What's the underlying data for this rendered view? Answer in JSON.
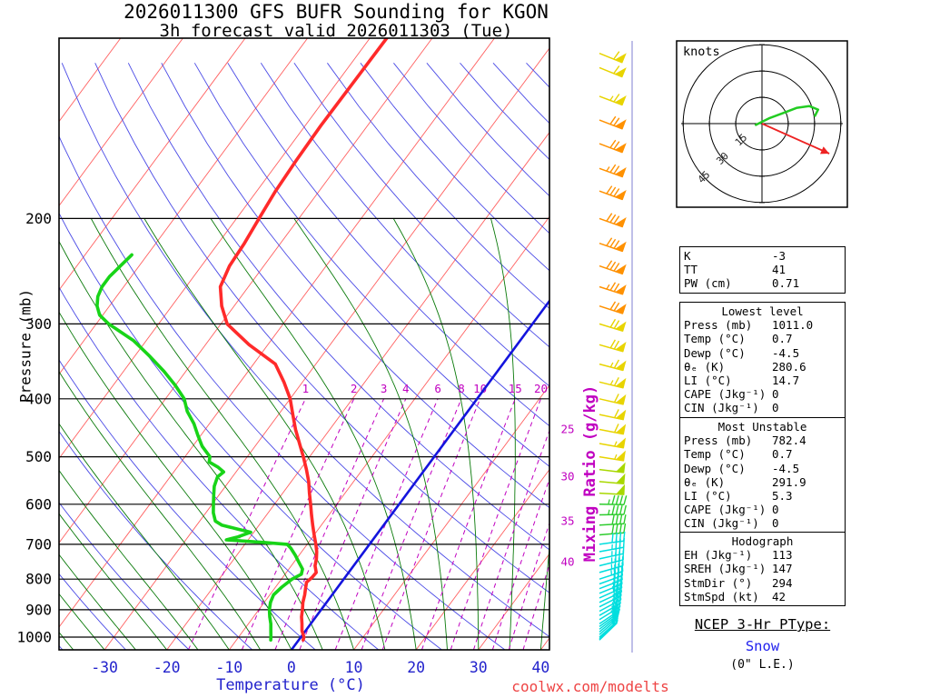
{
  "title": {
    "line1": "2026011300 GFS BUFR Sounding for KGON",
    "line2": "3h forecast valid 2026011303 (Tue)"
  },
  "axes": {
    "pressure_label": "Pressure (mb)",
    "temperature_label": "Temperature (°C)",
    "mixing_ratio_label": "Mixing Ratio (g/kg)",
    "pressure_ticks": [
      200,
      300,
      400,
      500,
      600,
      700,
      800,
      900,
      1000
    ],
    "temperature_ticks": [
      -30,
      -20,
      -10,
      0,
      10,
      20,
      30,
      40
    ]
  },
  "chart_data": {
    "type": "line",
    "subtype": "skew-t-log-p-sounding",
    "pressure_range_mb": [
      100,
      1050
    ],
    "temperature_range_c": [
      -37.3,
      41.4
    ],
    "series": [
      {
        "name": "temperature",
        "units": "°C vs mb",
        "color": "#ff2a2a",
        "points": [
          [
            1011,
            0.7
          ],
          [
            1000,
            0.5
          ],
          [
            975,
            -0.6
          ],
          [
            950,
            -1.4
          ],
          [
            925,
            -2.3
          ],
          [
            900,
            -3.0
          ],
          [
            875,
            -3.8
          ],
          [
            850,
            -4.4
          ],
          [
            830,
            -5.0
          ],
          [
            810,
            -5.6
          ],
          [
            795,
            -5.3
          ],
          [
            780,
            -5.2
          ],
          [
            760,
            -6.2
          ],
          [
            740,
            -6.8
          ],
          [
            720,
            -7.6
          ],
          [
            700,
            -8.6
          ],
          [
            675,
            -10.0
          ],
          [
            650,
            -11.4
          ],
          [
            625,
            -12.8
          ],
          [
            600,
            -14.2
          ],
          [
            575,
            -15.7
          ],
          [
            550,
            -17.2
          ],
          [
            525,
            -19.0
          ],
          [
            500,
            -21.0
          ],
          [
            475,
            -23.2
          ],
          [
            450,
            -25.5
          ],
          [
            425,
            -27.7
          ],
          [
            400,
            -30.0
          ],
          [
            375,
            -33.0
          ],
          [
            350,
            -36.5
          ],
          [
            325,
            -43.0
          ],
          [
            300,
            -49.0
          ],
          [
            280,
            -52.0
          ],
          [
            260,
            -54.5
          ],
          [
            240,
            -55.5
          ],
          [
            220,
            -55.8
          ],
          [
            200,
            -56.4
          ],
          [
            180,
            -57.0
          ],
          [
            160,
            -57.3
          ],
          [
            140,
            -57.5
          ],
          [
            120,
            -57.4
          ],
          [
            100,
            -57.3
          ]
        ]
      },
      {
        "name": "dewpoint",
        "units": "°C vs mb",
        "color": "#18d418",
        "points": [
          [
            1011,
            -4.5
          ],
          [
            1000,
            -4.8
          ],
          [
            975,
            -5.6
          ],
          [
            950,
            -6.4
          ],
          [
            925,
            -7.4
          ],
          [
            900,
            -8.3
          ],
          [
            875,
            -9.0
          ],
          [
            850,
            -9.4
          ],
          [
            825,
            -9.0
          ],
          [
            800,
            -8.3
          ],
          [
            785,
            -7.4
          ],
          [
            770,
            -7.8
          ],
          [
            750,
            -9.2
          ],
          [
            730,
            -10.6
          ],
          [
            710,
            -12.2
          ],
          [
            700,
            -13.2
          ],
          [
            695,
            -17.0
          ],
          [
            688,
            -23.5
          ],
          [
            680,
            -22.0
          ],
          [
            668,
            -20.5
          ],
          [
            660,
            -23.0
          ],
          [
            650,
            -26.0
          ],
          [
            640,
            -27.5
          ],
          [
            620,
            -28.8
          ],
          [
            600,
            -29.8
          ],
          [
            580,
            -30.8
          ],
          [
            560,
            -31.8
          ],
          [
            540,
            -32.4
          ],
          [
            530,
            -32.0
          ],
          [
            520,
            -33.5
          ],
          [
            510,
            -35.5
          ],
          [
            500,
            -36.0
          ],
          [
            480,
            -38.5
          ],
          [
            460,
            -40.5
          ],
          [
            440,
            -42.5
          ],
          [
            420,
            -45.0
          ],
          [
            400,
            -47.0
          ],
          [
            380,
            -50.0
          ],
          [
            360,
            -53.5
          ],
          [
            340,
            -57.5
          ],
          [
            320,
            -62.0
          ],
          [
            300,
            -68.0
          ],
          [
            290,
            -70.5
          ],
          [
            280,
            -72.0
          ],
          [
            270,
            -73.0
          ],
          [
            260,
            -73.5
          ],
          [
            250,
            -73.5
          ],
          [
            240,
            -73.0
          ],
          [
            230,
            -72.5
          ]
        ]
      }
    ],
    "freezing_isotherm_c": 0,
    "freezing_isotherm_color": "#1414dd",
    "isotherms_c": {
      "min": -110,
      "max": 40,
      "step": 10,
      "color": "#ff6060"
    },
    "dry_adiabats_c": {
      "min": -40,
      "max": 190,
      "step": 10,
      "color": "#4a4ae6"
    },
    "moist_adiabats_c": {
      "min": -60,
      "max": 40,
      "step": 5,
      "color": "#0a7a0a"
    },
    "mixing_ratio_lines_gkg": [
      1,
      2,
      3,
      4,
      6,
      8,
      10,
      15,
      20,
      25,
      30,
      35,
      40
    ],
    "mixing_ratio_color": "#c000c0",
    "wind_barbs": {
      "units": "kt",
      "speed_colors": [
        [
          0,
          "#00dede"
        ],
        [
          40,
          "#2ecc2e"
        ],
        [
          48,
          "#a8d800"
        ],
        [
          54,
          "#e8d400"
        ],
        [
          70,
          "#ff9100"
        ]
      ],
      "levels": [
        [
          106,
          58,
          292
        ],
        [
          112,
          62,
          292
        ],
        [
          125,
          67,
          291
        ],
        [
          137,
          70,
          291
        ],
        [
          150,
          72,
          291
        ],
        [
          165,
          76,
          290
        ],
        [
          180,
          79,
          290
        ],
        [
          200,
          82,
          290
        ],
        [
          220,
          81,
          289
        ],
        [
          240,
          78,
          289
        ],
        [
          260,
          75,
          288
        ],
        [
          280,
          72,
          288
        ],
        [
          300,
          69,
          287
        ],
        [
          325,
          68,
          286
        ],
        [
          350,
          66,
          285
        ],
        [
          375,
          64,
          284
        ],
        [
          400,
          62,
          283
        ],
        [
          425,
          60,
          282
        ],
        [
          450,
          58,
          281
        ],
        [
          475,
          56,
          280
        ],
        [
          500,
          54,
          279
        ],
        [
          525,
          52,
          277
        ],
        [
          550,
          50,
          275
        ],
        [
          575,
          48,
          273
        ],
        [
          600,
          46,
          271
        ],
        [
          625,
          44,
          269
        ],
        [
          650,
          42,
          267
        ],
        [
          675,
          40,
          265
        ],
        [
          700,
          38,
          262
        ],
        [
          720,
          37,
          260
        ],
        [
          740,
          36,
          258
        ],
        [
          760,
          35,
          256
        ],
        [
          780,
          34,
          254
        ],
        [
          800,
          33,
          252
        ],
        [
          815,
          32,
          250
        ],
        [
          830,
          31,
          249
        ],
        [
          845,
          30,
          248
        ],
        [
          860,
          29,
          246
        ],
        [
          875,
          28,
          245
        ],
        [
          890,
          27,
          243
        ],
        [
          905,
          26,
          242
        ],
        [
          920,
          25,
          240
        ],
        [
          935,
          24,
          238
        ],
        [
          950,
          22,
          236
        ],
        [
          960,
          21,
          234
        ],
        [
          970,
          20,
          232
        ],
        [
          980,
          18,
          230
        ],
        [
          990,
          17,
          229
        ],
        [
          1000,
          16,
          228
        ],
        [
          1006,
          15,
          227
        ],
        [
          1011,
          14,
          226
        ]
      ]
    },
    "hodograph": {
      "label": "knots",
      "ring_labels": [
        15,
        30,
        45
      ],
      "ring_spacing_kt": 15,
      "trace_uv_kt": [
        [
          -4,
          -1
        ],
        [
          4,
          3
        ],
        [
          12,
          6
        ],
        [
          20,
          9
        ],
        [
          27,
          10
        ],
        [
          32,
          8
        ],
        [
          30,
          4
        ]
      ],
      "trace_color": "#22cc22",
      "storm_motion": {
        "dir_deg": 294,
        "speed_kt": 42
      },
      "storm_color": "#ee2222"
    }
  },
  "stats": {
    "boxes": [
      {
        "header": "",
        "rows": [
          [
            "K",
            "-3"
          ],
          [
            "TT",
            "41"
          ],
          [
            "PW (cm)",
            "0.71"
          ]
        ]
      },
      {
        "header": "Lowest level",
        "rows": [
          [
            "Press (mb)",
            "1011.0"
          ],
          [
            "Temp (°C)",
            "0.7"
          ],
          [
            "Dewp (°C)",
            "-4.5"
          ],
          [
            "θₑ (K)",
            "280.6"
          ],
          [
            "LI (°C)",
            "14.7"
          ],
          [
            "CAPE (Jkg⁻¹)",
            "0"
          ],
          [
            "CIN (Jkg⁻¹)",
            "0"
          ]
        ]
      },
      {
        "header": "Most Unstable",
        "rows": [
          [
            "Press (mb)",
            "782.4"
          ],
          [
            "Temp (°C)",
            "0.7"
          ],
          [
            "Dewp (°C)",
            "-4.5"
          ],
          [
            "θₑ (K)",
            "291.9"
          ],
          [
            "LI (°C)",
            "5.3"
          ],
          [
            "CAPE (Jkg⁻¹)",
            "0"
          ],
          [
            "CIN (Jkg⁻¹)",
            "0"
          ]
        ]
      },
      {
        "header": "Hodograph",
        "rows": [
          [
            "EH (Jkg⁻¹)",
            "113"
          ],
          [
            "SREH (Jkg⁻¹)",
            "147"
          ],
          [
            "StmDir (°)",
            "294"
          ],
          [
            "StmSpd (kt)",
            "42"
          ]
        ]
      }
    ]
  },
  "ptype": {
    "heading": "NCEP 3-Hr PType:",
    "value": "Snow",
    "value_color": "#2222ee",
    "extra": "(0\" L.E.)"
  },
  "watermark": {
    "text": "coolwx.com/modelts",
    "color": "#ee4444"
  }
}
